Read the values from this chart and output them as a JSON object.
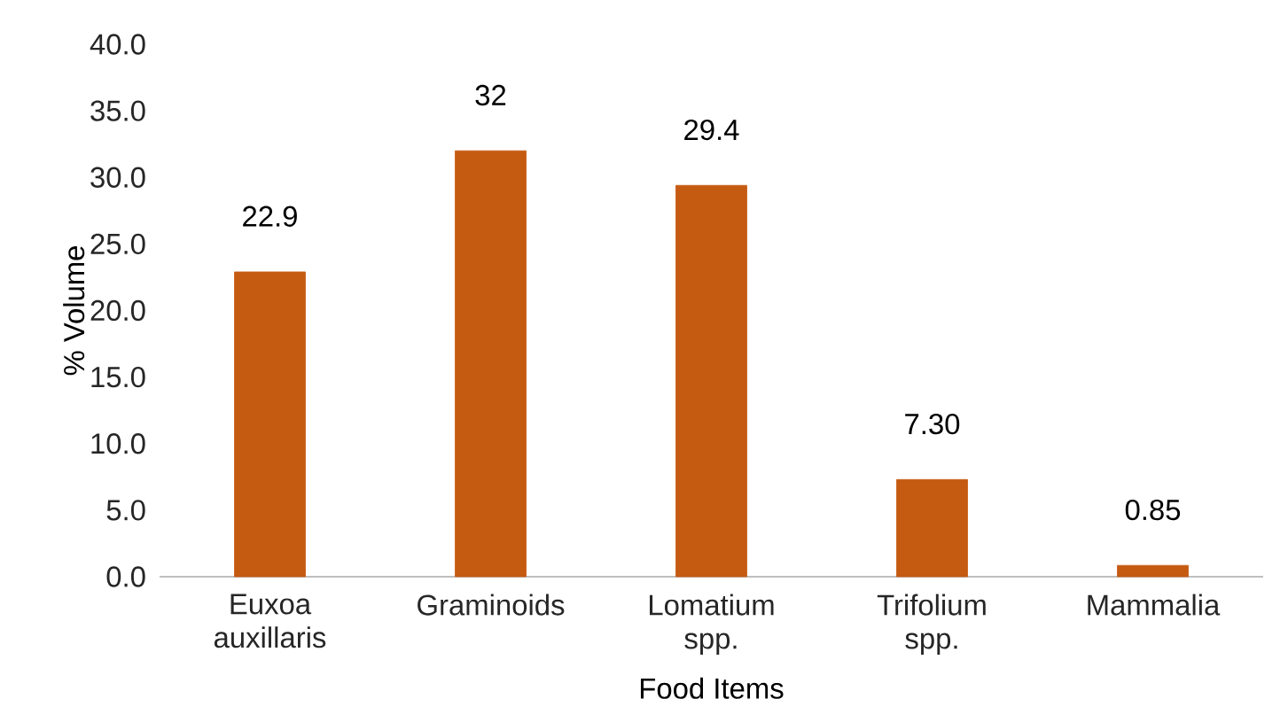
{
  "chart_data": {
    "type": "bar",
    "categories": [
      "Euxoa auxillaris",
      "Graminoids",
      "Lomatium spp.",
      "Trifolium spp.",
      "Mammalia"
    ],
    "values": [
      22.9,
      32,
      29.4,
      7.3,
      0.85
    ],
    "value_labels": [
      "22.9",
      "32",
      "29.4",
      "7.30",
      "0.85"
    ],
    "color": "#c55a11",
    "xlabel": "Food Items",
    "ylabel": "% Volume",
    "ylim": [
      0,
      40
    ],
    "yticks": [
      {
        "value": 0,
        "label": "0.0"
      },
      {
        "value": 5,
        "label": "5.0"
      },
      {
        "value": 10,
        "label": "10.0"
      },
      {
        "value": 15,
        "label": "15.0"
      },
      {
        "value": 20,
        "label": "20.0"
      },
      {
        "value": 25,
        "label": "25.0"
      },
      {
        "value": 30,
        "label": "30.0"
      },
      {
        "value": 35,
        "label": "35.0"
      },
      {
        "value": 40,
        "label": "40.0"
      }
    ]
  }
}
